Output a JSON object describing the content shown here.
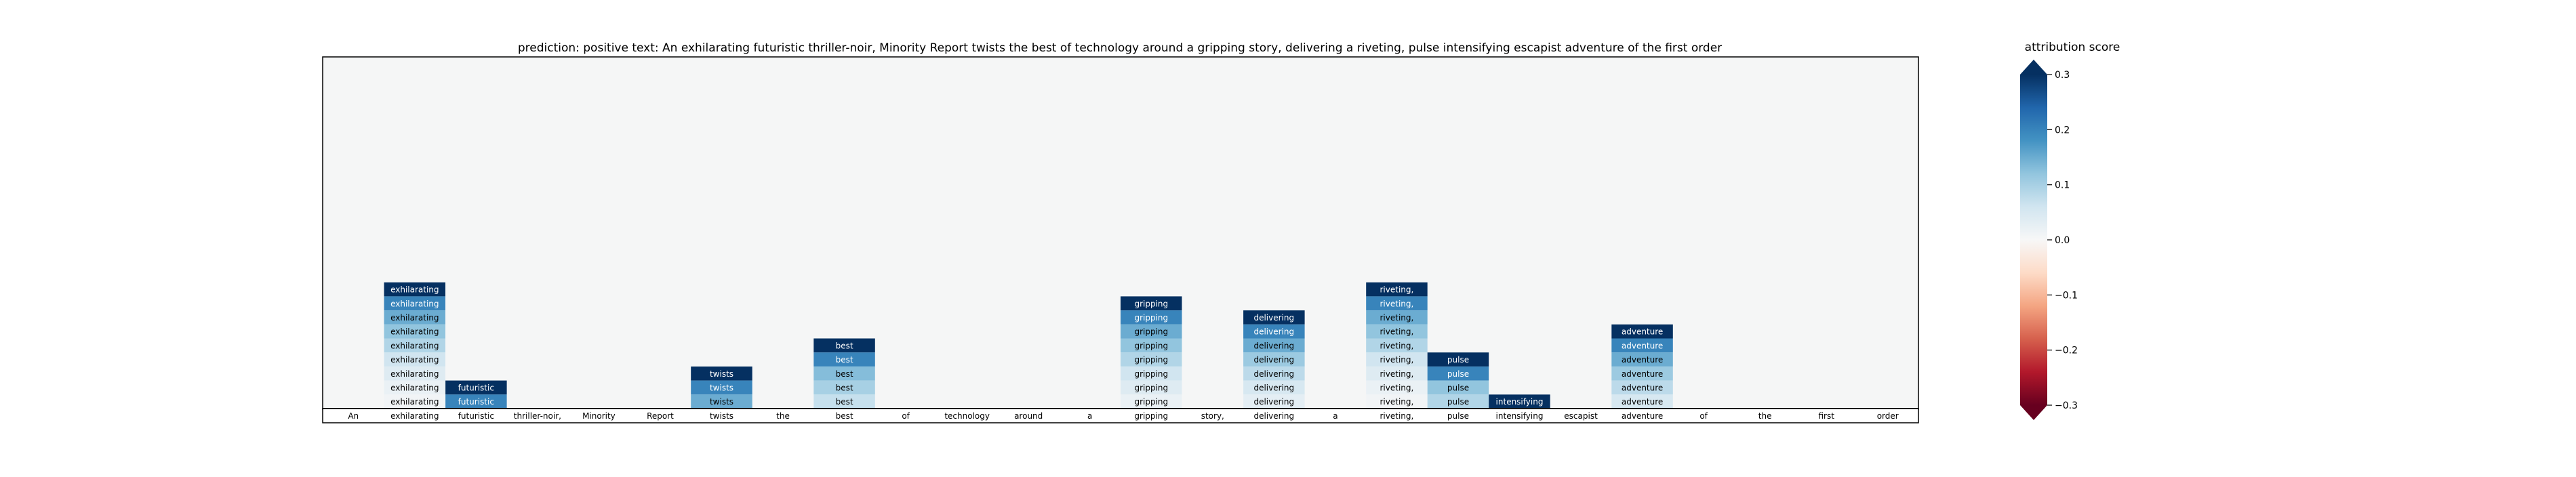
{
  "chart_data": {
    "type": "heatmap",
    "title": "prediction:  positive     text:  An exhilarating futuristic thriller-noir, Minority Report twists the best of technology around a gripping story, delivering a riveting, pulse intensifying escapist adventure of the first order",
    "tokens": [
      "An",
      "exhilarating",
      "futuristic",
      "thriller-noir,",
      "Minority",
      "Report",
      "twists",
      "the",
      "best",
      "of",
      "technology",
      "around",
      "a",
      "gripping",
      "story,",
      "delivering",
      "a",
      "riveting,",
      "pulse",
      "intensifying",
      "escapist",
      "adventure",
      "of",
      "the",
      "first",
      "order"
    ],
    "columns": [
      {
        "token_index": 1,
        "label": "exhilarating",
        "scores": [
          0.3,
          0.2,
          0.15,
          0.12,
          0.09,
          0.06,
          0.04,
          0.02,
          0.01
        ]
      },
      {
        "token_index": 2,
        "label": "futuristic",
        "scores": [
          0.3,
          0.2
        ]
      },
      {
        "token_index": 6,
        "label": "twists",
        "scores": [
          0.3,
          0.2,
          0.15
        ]
      },
      {
        "token_index": 8,
        "label": "best",
        "scores": [
          0.3,
          0.2,
          0.13,
          0.1,
          0.07
        ]
      },
      {
        "token_index": 13,
        "label": "gripping",
        "scores": [
          0.3,
          0.2,
          0.15,
          0.12,
          0.09,
          0.06,
          0.04,
          0.02
        ]
      },
      {
        "token_index": 15,
        "label": "delivering",
        "scores": [
          0.3,
          0.2,
          0.15,
          0.11,
          0.08,
          0.05,
          0.03
        ]
      },
      {
        "token_index": 17,
        "label": "riveting,",
        "scores": [
          0.3,
          0.2,
          0.15,
          0.12,
          0.09,
          0.06,
          0.04,
          0.02,
          0.01
        ]
      },
      {
        "token_index": 18,
        "label": "pulse",
        "scores": [
          0.3,
          0.2,
          0.12,
          0.09
        ]
      },
      {
        "token_index": 19,
        "label": "intensifying",
        "scores": [
          0.3
        ]
      },
      {
        "token_index": 21,
        "label": "adventure",
        "scores": [
          0.3,
          0.2,
          0.15,
          0.11,
          0.08,
          0.05
        ]
      }
    ],
    "colorbar": {
      "label": "attribution score",
      "vmin": -0.3,
      "vmax": 0.3,
      "ticks": [
        0.3,
        0.2,
        0.1,
        0.0,
        -0.1,
        -0.2,
        -0.3
      ],
      "tick_labels": [
        "0.3",
        "0.2",
        "0.1",
        "0.0",
        "−0.1",
        "−0.2",
        "−0.3"
      ],
      "colormap": "RdBu"
    },
    "colors": {
      "background": "#f5f6f6",
      "strong_positive": "#08306b",
      "strong_negative": "#67001f"
    }
  }
}
